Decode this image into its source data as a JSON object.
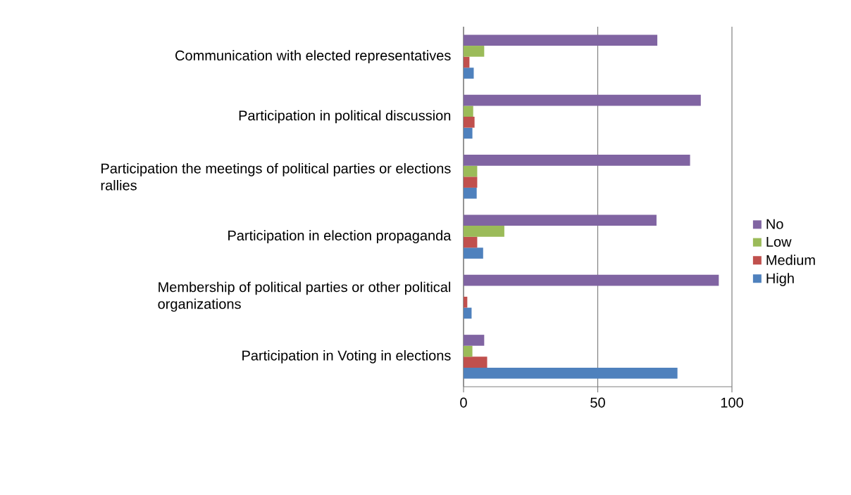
{
  "chart_data": {
    "type": "bar",
    "orientation": "horizontal",
    "categories": [
      "Communication with elected representatives",
      "Participation in political discussion",
      "Participation the meetings of political parties or elections rallies",
      "Participation in election propaganda",
      "Membership of political parties or other political organizations",
      "Participation in Voting in elections"
    ],
    "series": [
      {
        "name": "High",
        "color": "#4f81bd",
        "values": [
          3.8,
          3.3,
          4.9,
          7.3,
          3.0,
          79.7
        ]
      },
      {
        "name": "Medium",
        "color": "#c0504d",
        "values": [
          2.2,
          4.1,
          5.1,
          5.1,
          1.4,
          8.8
        ]
      },
      {
        "name": "Low",
        "color": "#9bbb59",
        "values": [
          7.7,
          3.6,
          5.1,
          15.2,
          0,
          3.3
        ]
      },
      {
        "name": "No",
        "color": "#8064a2",
        "values": [
          72.2,
          88.4,
          84.4,
          71.9,
          95.1,
          7.7
        ]
      }
    ],
    "xlim": [
      0,
      100
    ],
    "xticks": [
      0,
      50,
      100
    ],
    "grid": "x",
    "legend": "right"
  }
}
